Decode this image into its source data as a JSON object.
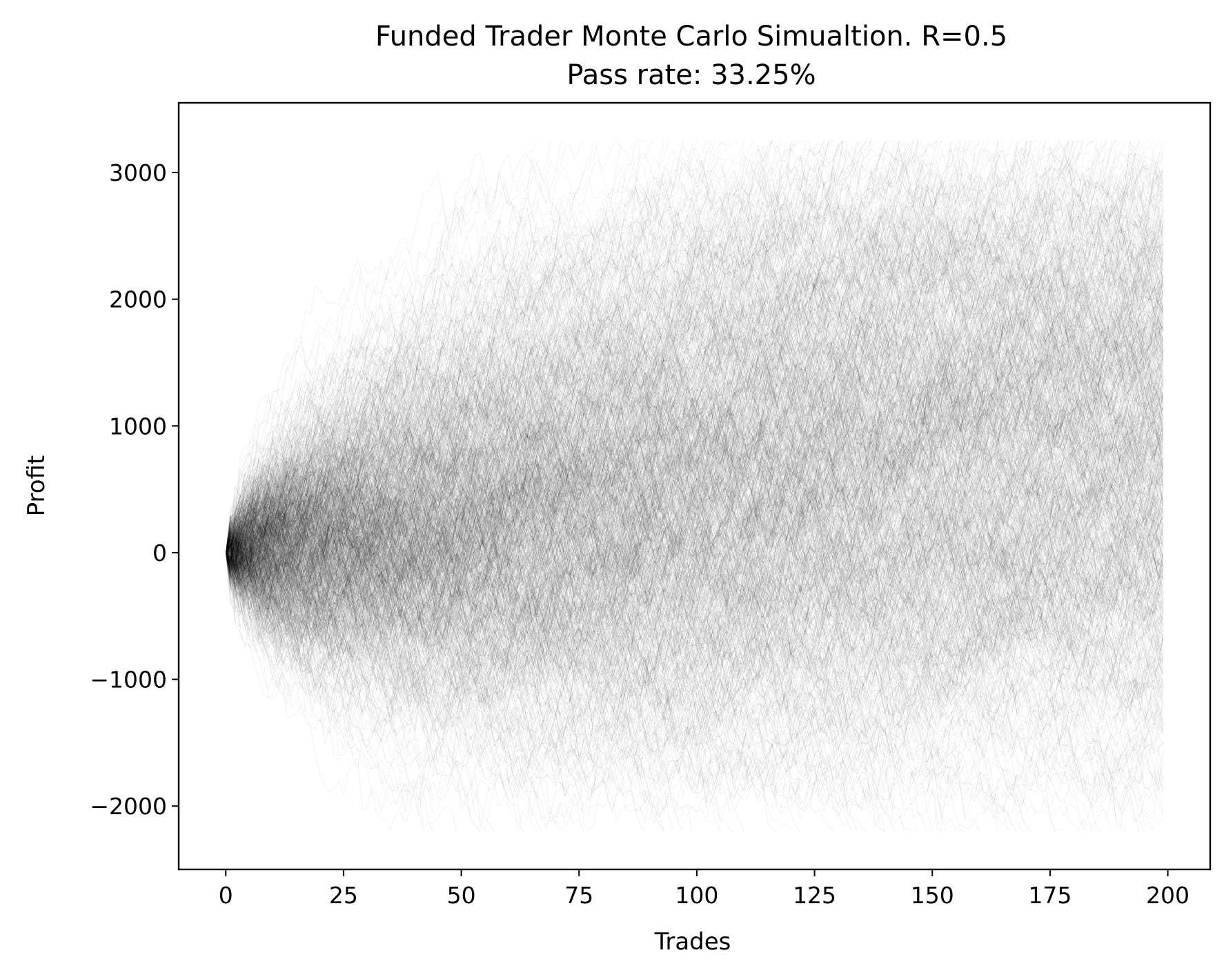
{
  "chart_data": {
    "type": "line",
    "title": "Funded Trader Monte Carlo Simualtion. R=0.5",
    "subtitle": "Pass rate: 33.25%",
    "xlabel": "Trades",
    "ylabel": "Profit",
    "xlim": [
      -10,
      209
    ],
    "ylim": [
      -2500,
      3550
    ],
    "xticks": [
      0,
      25,
      50,
      75,
      100,
      125,
      150,
      175,
      200
    ],
    "yticks": [
      -2000,
      -1000,
      0,
      1000,
      2000,
      3000
    ],
    "xtick_labels": [
      "0",
      "25",
      "50",
      "75",
      "100",
      "125",
      "150",
      "175",
      "200"
    ],
    "ytick_labels": [
      "−2000",
      "−1000",
      "0",
      "1000",
      "2000",
      "3000"
    ],
    "grid": false,
    "legend": "none",
    "line_color": "#000000",
    "simulation": {
      "max_trades": 199,
      "pass_level": 3250,
      "fail_level": -2200,
      "pass_rate_percent": 33.25
    }
  }
}
